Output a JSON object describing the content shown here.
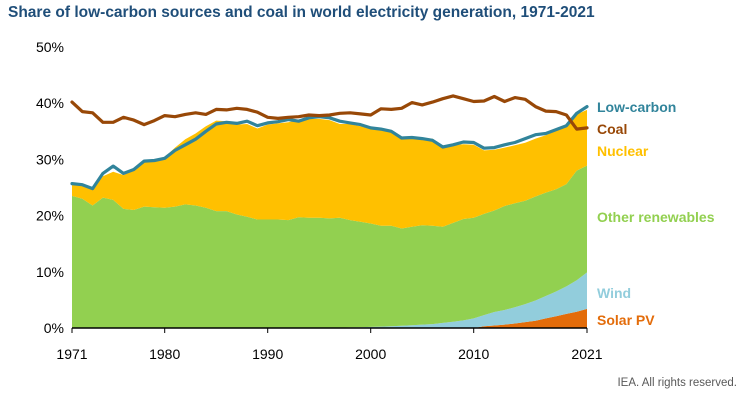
{
  "title": "Share of low-carbon sources and coal in world electricity generation, 1971-2021",
  "credit": "IEA. All rights reserved.",
  "chart_data": {
    "type": "area",
    "title": "Share of low-carbon sources and coal in world electricity generation, 1971-2021",
    "xlabel": "",
    "ylabel": "",
    "y_unit": "%",
    "xlim": [
      1971,
      2021
    ],
    "ylim": [
      0,
      50
    ],
    "x_ticks": [
      "1971",
      "1980",
      "1990",
      "2000",
      "2010",
      "2021"
    ],
    "y_ticks": [
      "0%",
      "10%",
      "20%",
      "30%",
      "40%",
      "50%"
    ],
    "grid": false,
    "legend": "direct labels at right",
    "x": [
      1971,
      1972,
      1973,
      1974,
      1975,
      1976,
      1977,
      1978,
      1979,
      1980,
      1981,
      1982,
      1983,
      1984,
      1985,
      1986,
      1987,
      1988,
      1989,
      1990,
      1991,
      1992,
      1993,
      1994,
      1995,
      1996,
      1997,
      1998,
      1999,
      2000,
      2001,
      2002,
      2003,
      2004,
      2005,
      2006,
      2007,
      2008,
      2009,
      2010,
      2011,
      2012,
      2013,
      2014,
      2015,
      2016,
      2017,
      2018,
      2019,
      2020,
      2021
    ],
    "stacked_areas": [
      {
        "name": "Solar PV",
        "color": "#e36c0a",
        "values": [
          0,
          0,
          0,
          0,
          0,
          0,
          0,
          0,
          0,
          0,
          0,
          0,
          0,
          0,
          0,
          0,
          0,
          0,
          0,
          0,
          0,
          0,
          0,
          0,
          0,
          0,
          0,
          0,
          0,
          0,
          0,
          0,
          0,
          0,
          0,
          0,
          0,
          0,
          0,
          0,
          0.3,
          0.45,
          0.6,
          0.8,
          1.05,
          1.3,
          1.7,
          2.1,
          2.5,
          2.9,
          3.4
        ]
      },
      {
        "name": "Wind",
        "color": "#92cddc",
        "values": [
          0,
          0,
          0,
          0,
          0,
          0,
          0,
          0,
          0,
          0,
          0,
          0,
          0,
          0,
          0,
          0,
          0,
          0,
          0,
          0,
          0,
          0,
          0,
          0,
          0,
          0.05,
          0.07,
          0.1,
          0.15,
          0.2,
          0.25,
          0.3,
          0.4,
          0.5,
          0.6,
          0.7,
          0.9,
          1.1,
          1.35,
          1.7,
          2.0,
          2.4,
          2.6,
          2.9,
          3.2,
          3.6,
          4.0,
          4.4,
          4.9,
          5.6,
          6.5
        ]
      },
      {
        "name": "Other renewables",
        "color": "#92d050",
        "values": [
          23.5,
          23,
          21.8,
          23.2,
          22.8,
          21.2,
          21,
          21.6,
          21.5,
          21.4,
          21.6,
          22,
          21.8,
          21.4,
          20.8,
          20.8,
          20.2,
          19.8,
          19.3,
          19.3,
          19.3,
          19.2,
          19.7,
          19.6,
          19.6,
          19.45,
          19.53,
          19.1,
          18.75,
          18.4,
          17.95,
          17.9,
          17.3,
          17.5,
          17.7,
          17.5,
          17.1,
          17.6,
          18.05,
          17.9,
          18.0,
          18.05,
          18.5,
          18.5,
          18.4,
          18.5,
          18.4,
          18.2,
          18.2,
          19.5,
          19.0
        ]
      },
      {
        "name": "Nuclear",
        "color": "#ffc000",
        "values": [
          2.2,
          2.3,
          2.8,
          3.8,
          5,
          6,
          7,
          8,
          8.5,
          9,
          10.5,
          11.6,
          12.8,
          14.5,
          16.1,
          16,
          16,
          16.5,
          16.2,
          16.9,
          17.1,
          17.4,
          17.3,
          17.6,
          17.6,
          17.5,
          16.7,
          17.1,
          17.0,
          16.8,
          17.0,
          16.6,
          15.9,
          15.9,
          15.5,
          15.5,
          14.0,
          13.8,
          13.3,
          13.0,
          11.3,
          10.8,
          10.4,
          10.3,
          10.3,
          10.3,
          10.2,
          10.4,
          10.6,
          10.0,
          9.9
        ]
      }
    ],
    "lines": [
      {
        "name": "Low-carbon",
        "color": "#31849b",
        "values": [
          25.7,
          25.5,
          24.8,
          27.5,
          28.8,
          27.5,
          28.2,
          29.7,
          29.8,
          30.2,
          31.6,
          32.6,
          33.6,
          35,
          36.3,
          36.6,
          36.4,
          36.8,
          36,
          36.5,
          36.7,
          37.1,
          36.8,
          37.4,
          37.6,
          37.4,
          36.8,
          36.5,
          36.2,
          35.6,
          35.4,
          35,
          33.8,
          33.9,
          33.7,
          33.4,
          32.2,
          32.6,
          33.1,
          33,
          32,
          32.1,
          32.6,
          33,
          33.7,
          34.4,
          34.6,
          35.3,
          36,
          38.2,
          39.4
        ]
      },
      {
        "name": "Coal",
        "color": "#984807",
        "values": [
          40.2,
          38.5,
          38.3,
          36.6,
          36.6,
          37.5,
          37,
          36.2,
          36.9,
          37.8,
          37.6,
          38,
          38.3,
          38,
          38.9,
          38.8,
          39.1,
          38.9,
          38.4,
          37.5,
          37.3,
          37.5,
          37.6,
          37.9,
          37.8,
          37.9,
          38.2,
          38.3,
          38.1,
          37.9,
          39,
          38.9,
          39.1,
          40.1,
          39.7,
          40.2,
          40.8,
          41.3,
          40.8,
          40.3,
          40.4,
          41.2,
          40.3,
          41,
          40.7,
          39.4,
          38.6,
          38.5,
          37.9,
          35.4,
          35.6
        ]
      }
    ],
    "series_labels": [
      "Low-carbon",
      "Coal",
      "Nuclear",
      "Other renewables",
      "Wind",
      "Solar PV"
    ]
  }
}
